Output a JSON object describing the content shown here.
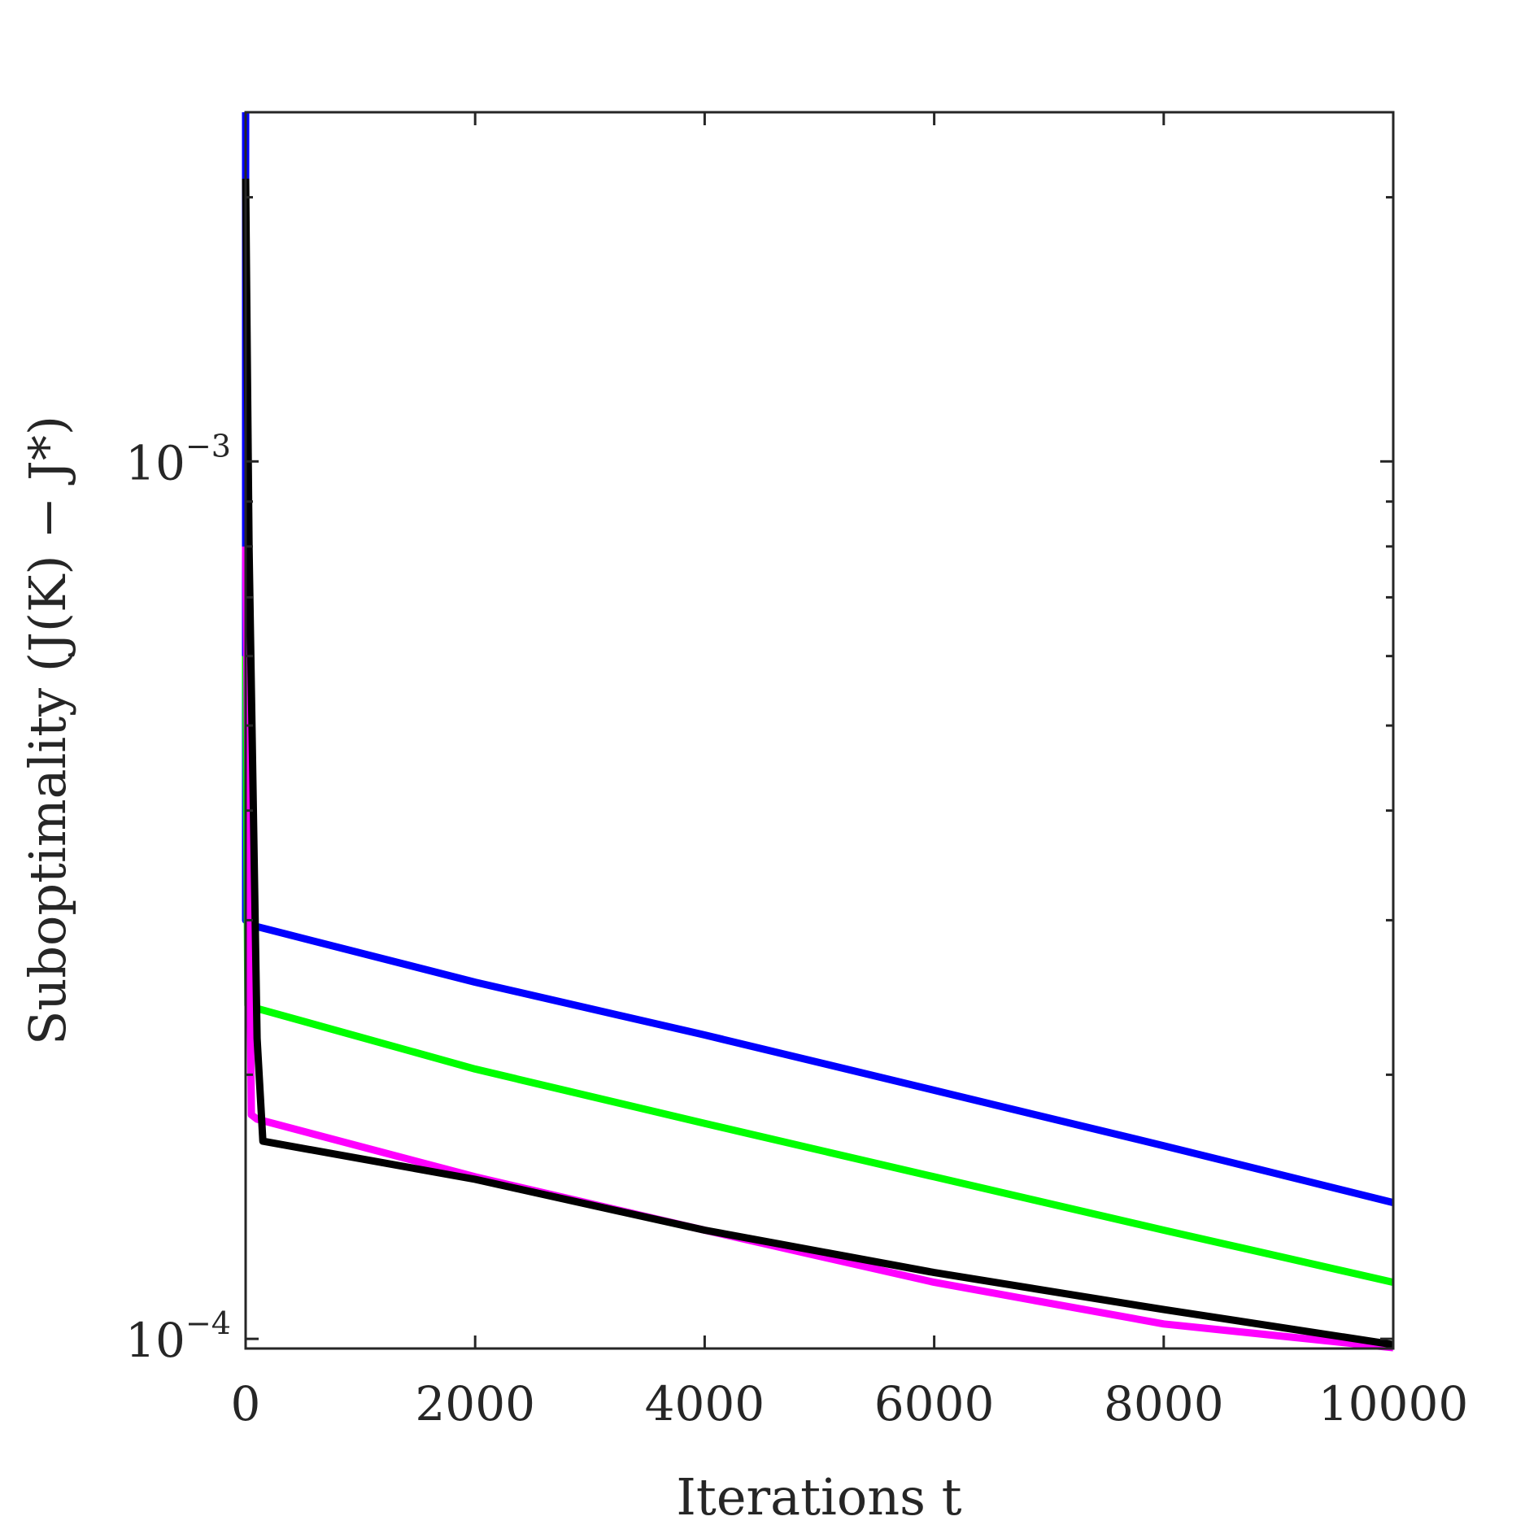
{
  "chart_data": {
    "type": "line",
    "xlabel": "Iterations t",
    "ylabel": "Suboptimality (J(K) − J*)",
    "x_scale": "linear",
    "y_scale": "log",
    "xlim": [
      0,
      10000
    ],
    "ylim": [
      9.75e-05,
      0.0025
    ],
    "x_ticks": [
      0,
      2000,
      4000,
      6000,
      8000,
      10000
    ],
    "x_tick_labels": [
      "0",
      "2000",
      "4000",
      "6000",
      "8000",
      "10000"
    ],
    "y_major_ticks": [
      0.0001,
      0.001
    ],
    "y_tick_labels": [
      {
        "value": 0.0001,
        "base": "10",
        "exponent": "−4"
      },
      {
        "value": 0.001,
        "base": "10",
        "exponent": "−3"
      }
    ],
    "grid": false,
    "legend": "none",
    "series": [
      {
        "color": "#0000ff",
        "x": [
          0,
          0,
          100,
          2000,
          4000,
          6000,
          8000,
          10000
        ],
        "y": [
          0.0025,
          0.0003,
          0.000295,
          0.000255,
          0.000222,
          0.000192,
          0.000166,
          0.000143
        ]
      },
      {
        "color": "#00ff00",
        "x": [
          0,
          20,
          100,
          2000,
          4000,
          6000,
          8000,
          10000
        ],
        "y": [
          0.0006,
          0.00024,
          0.000238,
          0.000203,
          0.000176,
          0.000153,
          0.000133,
          0.000116
        ]
      },
      {
        "color": "#ff00ff",
        "x": [
          0,
          50,
          100,
          2000,
          4000,
          6000,
          8000,
          10000
        ],
        "y": [
          0.0008,
          0.00018,
          0.000178,
          0.000153,
          0.000133,
          0.000116,
          0.000104,
          9.77e-05
        ]
      },
      {
        "color": "#000000",
        "x": [
          0,
          30,
          100,
          150,
          2000,
          4000,
          6000,
          8000,
          10000
        ],
        "y": [
          0.0021,
          0.0008,
          0.00022,
          0.000168,
          0.000152,
          0.000133,
          0.000119,
          0.000108,
          9.85e-05
        ]
      }
    ]
  }
}
